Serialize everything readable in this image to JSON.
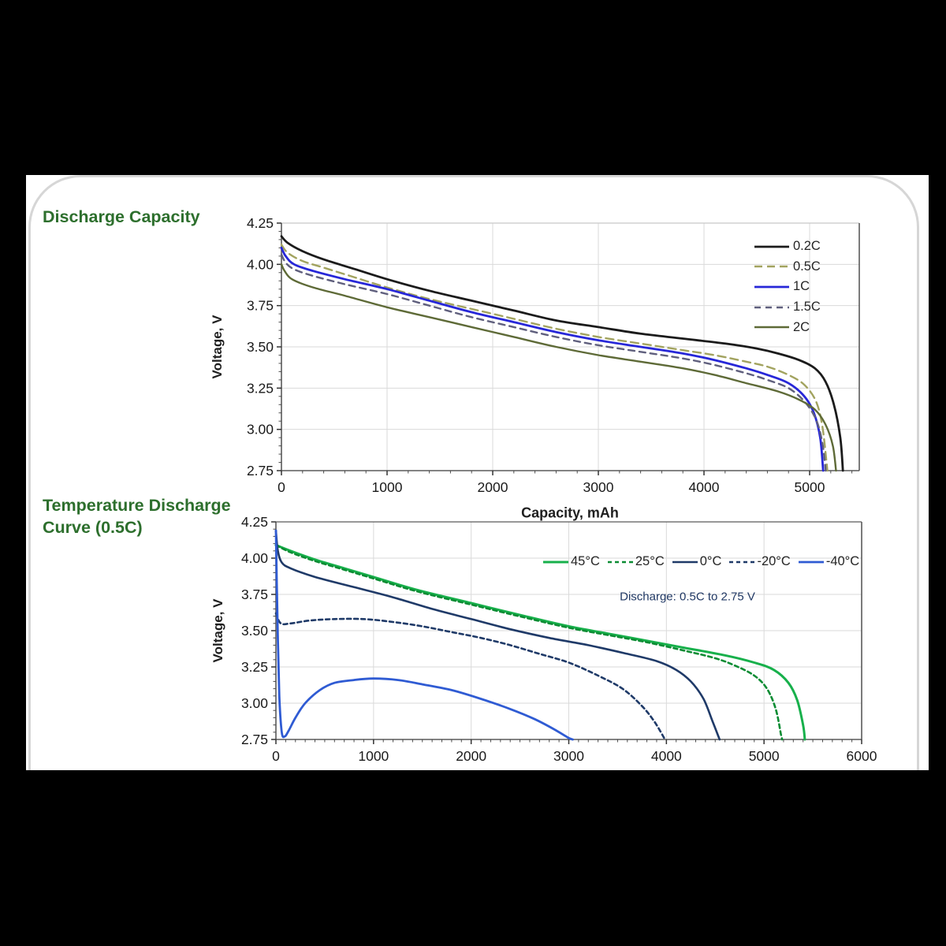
{
  "page": {
    "background_color": "#000000",
    "card_color": "#ffffff",
    "title_color": "#2d6f2d",
    "section1_title": "Discharge Capacity",
    "section2_title": "Temperature Discharge Curve (0.5C)"
  },
  "chart_data": [
    {
      "type": "line",
      "name": "discharge-capacity-by-rate",
      "title": "Discharge Capacity",
      "xlabel": "Capacity, mAh",
      "ylabel": "Voltage, V",
      "xlim": [
        0,
        5470
      ],
      "ylim": [
        2.75,
        4.25
      ],
      "xticks": [
        0,
        1000,
        2000,
        3000,
        4000,
        5000
      ],
      "xtick_labels": [
        "0",
        "1000",
        "2000",
        "3000",
        "4000",
        "5000"
      ],
      "yticks": [
        2.75,
        3.0,
        3.25,
        3.5,
        3.75,
        4.0,
        4.25
      ],
      "ytick_labels": [
        "2.75",
        "3.00",
        "3.25",
        "3.50",
        "3.75",
        "4.00",
        "4.25"
      ],
      "x_minor_step": 200,
      "y_minor_step": 0.05,
      "grid": true,
      "legend_position": "inside-top-right-vertical",
      "series": [
        {
          "name": "0.2C",
          "color": "#1b1b1b",
          "dash": null,
          "width": 2.8,
          "points": [
            [
              0,
              4.17
            ],
            [
              60,
              4.13
            ],
            [
              200,
              4.08
            ],
            [
              400,
              4.03
            ],
            [
              700,
              3.97
            ],
            [
              1000,
              3.91
            ],
            [
              1400,
              3.84
            ],
            [
              1800,
              3.78
            ],
            [
              2200,
              3.72
            ],
            [
              2600,
              3.66
            ],
            [
              3000,
              3.62
            ],
            [
              3400,
              3.58
            ],
            [
              3800,
              3.55
            ],
            [
              4200,
              3.52
            ],
            [
              4500,
              3.49
            ],
            [
              4700,
              3.46
            ],
            [
              4900,
              3.42
            ],
            [
              5050,
              3.37
            ],
            [
              5150,
              3.29
            ],
            [
              5230,
              3.15
            ],
            [
              5290,
              2.95
            ],
            [
              5315,
              2.75
            ]
          ]
        },
        {
          "name": "0.5C",
          "color": "#a2a35f",
          "dash": [
            10,
            6
          ],
          "width": 2.4,
          "points": [
            [
              0,
              4.12
            ],
            [
              60,
              4.07
            ],
            [
              200,
              4.02
            ],
            [
              400,
              3.98
            ],
            [
              700,
              3.92
            ],
            [
              1000,
              3.86
            ],
            [
              1400,
              3.79
            ],
            [
              1800,
              3.73
            ],
            [
              2200,
              3.67
            ],
            [
              2600,
              3.61
            ],
            [
              3000,
              3.56
            ],
            [
              3400,
              3.52
            ],
            [
              3800,
              3.48
            ],
            [
              4100,
              3.45
            ],
            [
              4400,
              3.41
            ],
            [
              4600,
              3.38
            ],
            [
              4800,
              3.33
            ],
            [
              4950,
              3.27
            ],
            [
              5060,
              3.17
            ],
            [
              5120,
              3.02
            ],
            [
              5160,
              2.8
            ],
            [
              5168,
              2.75
            ]
          ]
        },
        {
          "name": "1C",
          "color": "#2727d8",
          "dash": null,
          "width": 2.8,
          "points": [
            [
              0,
              4.1
            ],
            [
              40,
              4.05
            ],
            [
              120,
              4.0
            ],
            [
              300,
              3.96
            ],
            [
              600,
              3.91
            ],
            [
              1000,
              3.85
            ],
            [
              1400,
              3.78
            ],
            [
              1800,
              3.71
            ],
            [
              2200,
              3.65
            ],
            [
              2600,
              3.59
            ],
            [
              3000,
              3.54
            ],
            [
              3400,
              3.5
            ],
            [
              3800,
              3.46
            ],
            [
              4100,
              3.42
            ],
            [
              4400,
              3.37
            ],
            [
              4600,
              3.33
            ],
            [
              4800,
              3.28
            ],
            [
              4950,
              3.2
            ],
            [
              5040,
              3.1
            ],
            [
              5100,
              2.95
            ],
            [
              5128,
              2.75
            ]
          ]
        },
        {
          "name": "1.5C",
          "color": "#5f5f7d",
          "dash": [
            8,
            6
          ],
          "width": 2.4,
          "points": [
            [
              0,
              4.06
            ],
            [
              40,
              4.01
            ],
            [
              120,
              3.97
            ],
            [
              300,
              3.93
            ],
            [
              600,
              3.88
            ],
            [
              1000,
              3.82
            ],
            [
              1400,
              3.75
            ],
            [
              1800,
              3.68
            ],
            [
              2200,
              3.62
            ],
            [
              2600,
              3.56
            ],
            [
              3000,
              3.51
            ],
            [
              3400,
              3.47
            ],
            [
              3800,
              3.43
            ],
            [
              4100,
              3.39
            ],
            [
              4400,
              3.34
            ],
            [
              4600,
              3.3
            ],
            [
              4800,
              3.25
            ],
            [
              4950,
              3.17
            ],
            [
              5060,
              3.06
            ],
            [
              5120,
              2.92
            ],
            [
              5152,
              2.75
            ]
          ]
        },
        {
          "name": "2C",
          "color": "#5e6a37",
          "dash": null,
          "width": 2.4,
          "points": [
            [
              0,
              4.0
            ],
            [
              30,
              3.96
            ],
            [
              100,
              3.91
            ],
            [
              300,
              3.86
            ],
            [
              600,
              3.81
            ],
            [
              1000,
              3.74
            ],
            [
              1400,
              3.68
            ],
            [
              1800,
              3.62
            ],
            [
              2200,
              3.56
            ],
            [
              2600,
              3.5
            ],
            [
              3000,
              3.45
            ],
            [
              3400,
              3.41
            ],
            [
              3800,
              3.37
            ],
            [
              4100,
              3.33
            ],
            [
              4400,
              3.28
            ],
            [
              4700,
              3.23
            ],
            [
              4900,
              3.18
            ],
            [
              5050,
              3.12
            ],
            [
              5150,
              3.03
            ],
            [
              5220,
              2.9
            ],
            [
              5250,
              2.75
            ]
          ]
        }
      ]
    },
    {
      "type": "line",
      "name": "temperature-discharge-curve",
      "title": "Temperature Discharge Curve (0.5C)",
      "annotation": "Discharge: 0.5C to 2.75 V",
      "xlabel": "",
      "ylabel": "Voltage, V",
      "xlim": [
        0,
        6000
      ],
      "ylim": [
        2.75,
        4.25
      ],
      "xticks": [
        0,
        1000,
        2000,
        3000,
        4000,
        5000,
        6000
      ],
      "xtick_labels": [
        "0",
        "1000",
        "2000",
        "3000",
        "4000",
        "5000",
        "6000"
      ],
      "yticks": [
        2.75,
        3.0,
        3.25,
        3.5,
        3.75,
        4.0,
        4.25
      ],
      "ytick_labels": [
        "2.75",
        "3.00",
        "3.25",
        "3.50",
        "3.75",
        "4.00",
        "4.25"
      ],
      "x_minor_step": 100,
      "y_minor_step": 0.05,
      "grid": true,
      "legend_position": "inside-top-right-horizontal",
      "series": [
        {
          "name": "45°C",
          "color": "#17b04b",
          "dash": null,
          "width": 3,
          "points": [
            [
              0,
              4.09
            ],
            [
              150,
              4.05
            ],
            [
              400,
              3.99
            ],
            [
              700,
              3.93
            ],
            [
              1000,
              3.87
            ],
            [
              1450,
              3.78
            ],
            [
              2000,
              3.69
            ],
            [
              2550,
              3.6
            ],
            [
              3000,
              3.53
            ],
            [
              3400,
              3.48
            ],
            [
              3800,
              3.43
            ],
            [
              4200,
              3.38
            ],
            [
              4600,
              3.33
            ],
            [
              4900,
              3.28
            ],
            [
              5100,
              3.23
            ],
            [
              5250,
              3.14
            ],
            [
              5340,
              3.02
            ],
            [
              5400,
              2.85
            ],
            [
              5418,
              2.75
            ]
          ]
        },
        {
          "name": "25°C",
          "color": "#0c8c33",
          "dash": [
            5,
            4
          ],
          "width": 2.6,
          "points": [
            [
              0,
              4.09
            ],
            [
              150,
              4.04
            ],
            [
              400,
              3.98
            ],
            [
              700,
              3.92
            ],
            [
              1000,
              3.86
            ],
            [
              1450,
              3.77
            ],
            [
              2000,
              3.68
            ],
            [
              2550,
              3.59
            ],
            [
              3000,
              3.52
            ],
            [
              3400,
              3.47
            ],
            [
              3800,
              3.42
            ],
            [
              4200,
              3.36
            ],
            [
              4500,
              3.31
            ],
            [
              4700,
              3.26
            ],
            [
              4900,
              3.19
            ],
            [
              5030,
              3.1
            ],
            [
              5120,
              2.96
            ],
            [
              5175,
              2.78
            ],
            [
              5185,
              2.75
            ]
          ]
        },
        {
          "name": "0°C",
          "color": "#1f3a68",
          "dash": null,
          "width": 2.6,
          "points": [
            [
              0,
              4.19
            ],
            [
              20,
              4.05
            ],
            [
              60,
              3.97
            ],
            [
              150,
              3.93
            ],
            [
              400,
              3.87
            ],
            [
              800,
              3.8
            ],
            [
              1200,
              3.73
            ],
            [
              1600,
              3.65
            ],
            [
              2000,
              3.58
            ],
            [
              2400,
              3.51
            ],
            [
              2800,
              3.45
            ],
            [
              3200,
              3.4
            ],
            [
              3600,
              3.34
            ],
            [
              3900,
              3.29
            ],
            [
              4100,
              3.23
            ],
            [
              4250,
              3.15
            ],
            [
              4380,
              3.03
            ],
            [
              4470,
              2.88
            ],
            [
              4545,
              2.75
            ]
          ]
        },
        {
          "name": "-20°C",
          "color": "#1f3a68",
          "dash": [
            5,
            4
          ],
          "width": 2.6,
          "points": [
            [
              0,
              3.62
            ],
            [
              50,
              3.55
            ],
            [
              150,
              3.55
            ],
            [
              350,
              3.57
            ],
            [
              600,
              3.58
            ],
            [
              900,
              3.58
            ],
            [
              1200,
              3.56
            ],
            [
              1500,
              3.53
            ],
            [
              1800,
              3.49
            ],
            [
              2100,
              3.45
            ],
            [
              2400,
              3.4
            ],
            [
              2700,
              3.34
            ],
            [
              3000,
              3.28
            ],
            [
              3300,
              3.19
            ],
            [
              3550,
              3.1
            ],
            [
              3750,
              2.98
            ],
            [
              3880,
              2.87
            ],
            [
              3985,
              2.75
            ]
          ]
        },
        {
          "name": "-40°C",
          "color": "#2f5bd3",
          "dash": null,
          "width": 2.8,
          "points": [
            [
              0,
              4.19
            ],
            [
              15,
              3.6
            ],
            [
              35,
              3.05
            ],
            [
              60,
              2.8
            ],
            [
              90,
              2.77
            ],
            [
              130,
              2.81
            ],
            [
              200,
              2.9
            ],
            [
              300,
              3.0
            ],
            [
              450,
              3.09
            ],
            [
              600,
              3.14
            ],
            [
              800,
              3.16
            ],
            [
              1000,
              3.17
            ],
            [
              1250,
              3.16
            ],
            [
              1500,
              3.13
            ],
            [
              1800,
              3.09
            ],
            [
              2100,
              3.03
            ],
            [
              2400,
              2.96
            ],
            [
              2650,
              2.89
            ],
            [
              2850,
              2.82
            ],
            [
              3000,
              2.76
            ],
            [
              3040,
              2.75
            ]
          ]
        }
      ]
    }
  ]
}
